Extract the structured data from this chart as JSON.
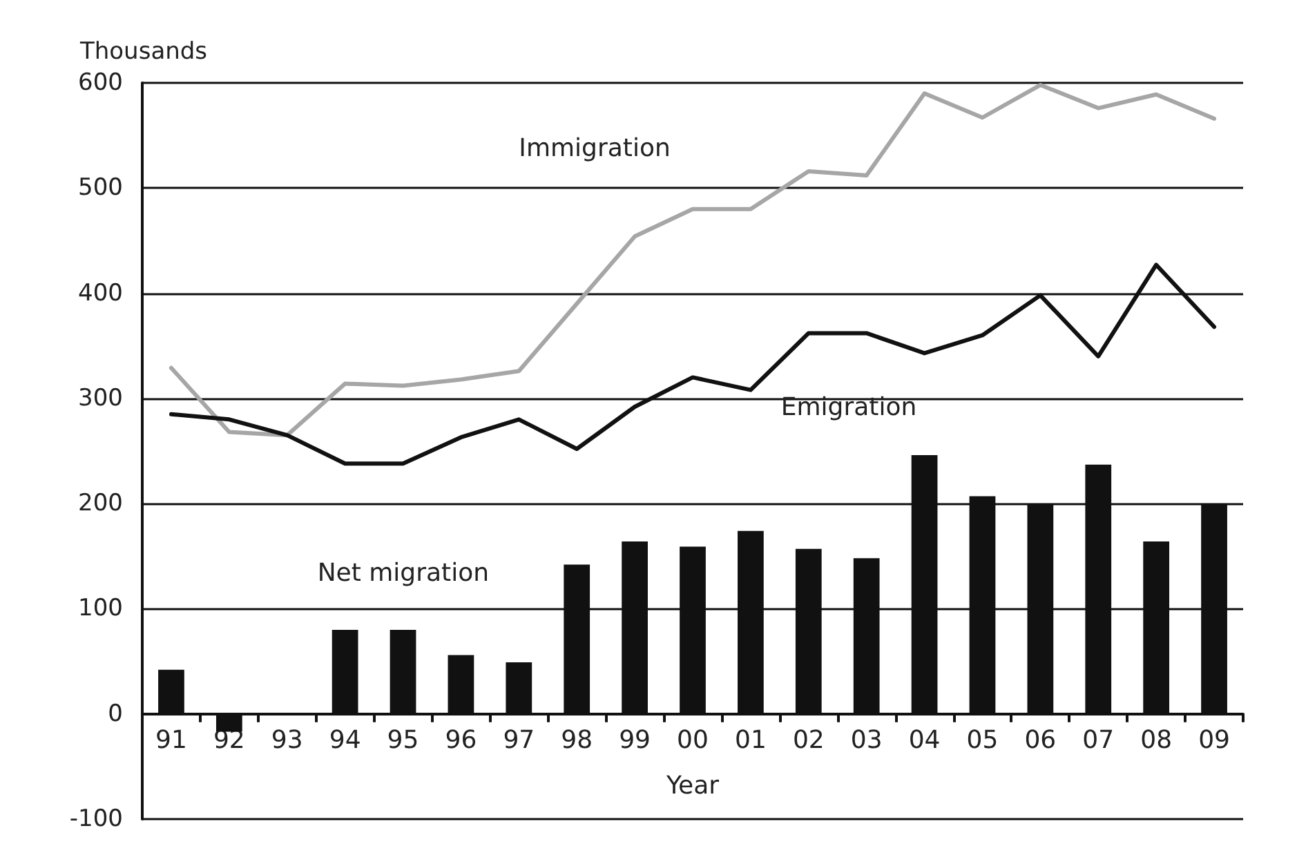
{
  "chart_data": {
    "type": "bar",
    "xlabel": "Year",
    "ylabel": "Thousands",
    "categories": [
      "91",
      "92",
      "93",
      "94",
      "95",
      "96",
      "97",
      "98",
      "99",
      "00",
      "01",
      "02",
      "03",
      "04",
      "05",
      "06",
      "07",
      "08",
      "09"
    ],
    "series": [
      {
        "name": "Net migration",
        "color": "#111111",
        "values": [
          42,
          -17,
          0,
          80,
          80,
          56,
          49,
          142,
          164,
          159,
          174,
          157,
          148,
          246,
          207,
          200,
          237,
          164,
          200
        ]
      },
      {
        "name": "Immigration",
        "type": "line",
        "color": "#a6a6a6",
        "values": [
          329,
          268,
          265,
          314,
          312,
          318,
          326,
          390,
          454,
          480,
          480,
          516,
          512,
          590,
          567,
          598,
          576,
          589,
          566
        ]
      },
      {
        "name": "Emigration",
        "type": "line",
        "color": "#111111",
        "values": [
          285,
          280,
          265,
          238,
          238,
          263,
          280,
          252,
          292,
          320,
          308,
          362,
          362,
          343,
          360,
          398,
          340,
          427,
          368
        ]
      }
    ],
    "ylim": [
      -100,
      600
    ],
    "yticks": [
      -100,
      0,
      100,
      200,
      300,
      400,
      500,
      600
    ],
    "grid": "y",
    "legend": false,
    "marker": "none",
    "line_style": "solid"
  }
}
